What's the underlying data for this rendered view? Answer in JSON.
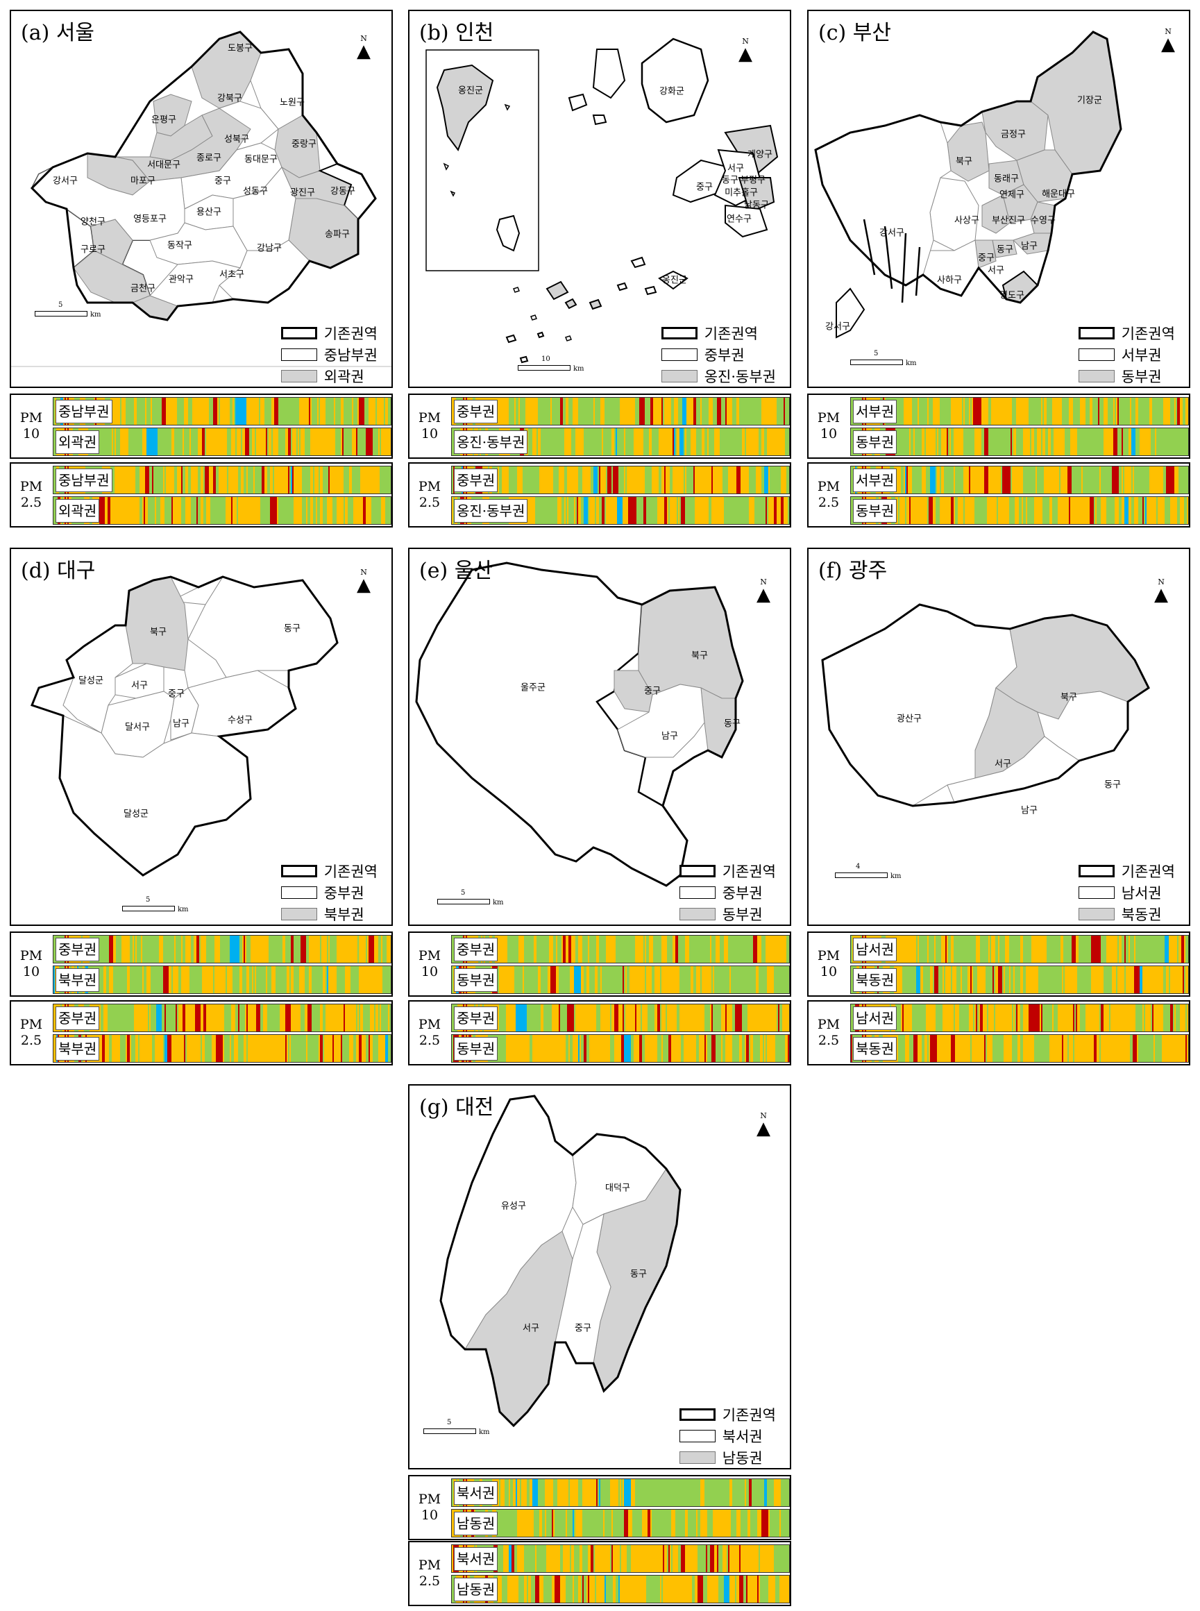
{
  "color_key": {
    "0": "#92d050",
    "1": "#ffc000",
    "2": "#c00000",
    "3": "#00b0f0"
  },
  "common": {
    "north": "N",
    "pm10": [
      "PM",
      "10"
    ],
    "pm25": [
      "PM",
      "2.5"
    ],
    "legend_base": "기존권역"
  },
  "panels": [
    {
      "id": "seoul",
      "title": "(a) 서울",
      "legend": [
        "기존권역",
        "중남부권",
        "외곽권"
      ],
      "scale": {
        "value": "5",
        "unit": "km"
      },
      "districts": [
        "도봉구",
        "강북구",
        "노원구",
        "은평구",
        "성북구",
        "중랑구",
        "서대문구",
        "종로구",
        "동대문구",
        "마포구",
        "중구",
        "강서구",
        "성동구",
        "광진구",
        "강동구",
        "양천구",
        "영등포구",
        "용산구",
        "송파구",
        "구로구",
        "동작구",
        "강남구",
        "관악구",
        "서초구",
        "금천구"
      ],
      "pm10": {
        "regions": [
          "중남부권",
          "외곽권"
        ]
      },
      "pm25": {
        "regions": [
          "중남부권",
          "외곽권"
        ]
      }
    },
    {
      "id": "incheon",
      "title": "(b) 인천",
      "legend": [
        "기존권역",
        "중부권",
        "옹진·동부권"
      ],
      "scale": {
        "value": "10",
        "unit": "km"
      },
      "districts": [
        "옹진군",
        "강화군",
        "계양구",
        "서구",
        "부평구",
        "중구",
        "미추홀구",
        "남동구",
        "연수구",
        "동구",
        "옹진군"
      ],
      "pm10": {
        "regions": [
          "중부권",
          "옹진·동부권"
        ]
      },
      "pm25": {
        "regions": [
          "중부권",
          "옹진·동부권"
        ]
      }
    },
    {
      "id": "busan",
      "title": "(c) 부산",
      "legend": [
        "기존권역",
        "서부권",
        "동부권"
      ],
      "scale": {
        "value": "5",
        "unit": "km"
      },
      "districts": [
        "기장군",
        "금정구",
        "북구",
        "동래구",
        "해운대구",
        "연제구",
        "강서구",
        "사상구",
        "부산진구",
        "수영구",
        "남구",
        "동구",
        "중구",
        "서구",
        "사하구",
        "영도구",
        "강서구"
      ],
      "pm10": {
        "regions": [
          "서부권",
          "동부권"
        ]
      },
      "pm25": {
        "regions": [
          "서부권",
          "동부권"
        ]
      }
    },
    {
      "id": "daegu",
      "title": "(d) 대구",
      "legend": [
        "기존권역",
        "중부권",
        "북부권"
      ],
      "scale": {
        "value": "5",
        "unit": "km"
      },
      "districts": [
        "북구",
        "동구",
        "달성군",
        "서구",
        "중구",
        "달서구",
        "남구",
        "수성구",
        "달성군"
      ],
      "pm10": {
        "regions": [
          "중부권",
          "북부권"
        ]
      },
      "pm25": {
        "regions": [
          "중부권",
          "북부권"
        ]
      }
    },
    {
      "id": "ulsan",
      "title": "(e) 울산",
      "legend": [
        "기존권역",
        "중부권",
        "동부권"
      ],
      "scale": {
        "value": "5",
        "unit": "km"
      },
      "districts": [
        "북구",
        "울주군",
        "중구",
        "동구",
        "남구"
      ],
      "pm10": {
        "regions": [
          "중부권",
          "동부권"
        ]
      },
      "pm25": {
        "regions": [
          "중부권",
          "동부권"
        ]
      }
    },
    {
      "id": "gwangju",
      "title": "(f) 광주",
      "legend": [
        "기존권역",
        "남서권",
        "북동권"
      ],
      "scale": {
        "value": "4",
        "unit": "km"
      },
      "districts": [
        "광산구",
        "북구",
        "서구",
        "동구",
        "남구"
      ],
      "pm10": {
        "regions": [
          "남서권",
          "북동권"
        ]
      },
      "pm25": {
        "regions": [
          "남서권",
          "북동권"
        ]
      }
    },
    {
      "id": "daejeon",
      "title": "(g) 대전",
      "legend": [
        "기존권역",
        "북서권",
        "남동권"
      ],
      "scale": {
        "value": "5",
        "unit": "km"
      },
      "districts": [
        "대덕구",
        "유성구",
        "동구",
        "서구",
        "중구"
      ],
      "pm10": {
        "regions": [
          "북서권",
          "남동권"
        ]
      },
      "pm25": {
        "regions": [
          "북서권",
          "남동권"
        ]
      }
    }
  ]
}
